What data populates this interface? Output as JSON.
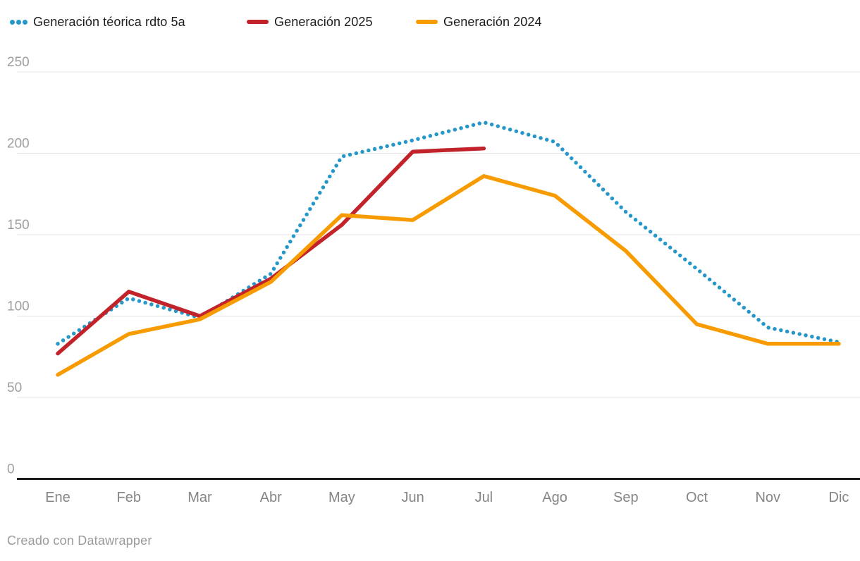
{
  "legend": {
    "items": [
      {
        "label": "Generación téorica rdto 5a",
        "color": "#2597c8",
        "style": "dotted"
      },
      {
        "label": "Generación 2025",
        "color": "#c2232a",
        "style": "solid"
      },
      {
        "label": "Generación 2024",
        "color": "#f79b00",
        "style": "solid"
      }
    ]
  },
  "chart_data": {
    "type": "line",
    "title": "",
    "categories": [
      "Ene",
      "Feb",
      "Mar",
      "Abr",
      "May",
      "Jun",
      "Jul",
      "Ago",
      "Sep",
      "Oct",
      "Nov",
      "Dic"
    ],
    "series": [
      {
        "name": "Generación téorica rdto 5a",
        "color": "#2597c8",
        "line_style": "dotted",
        "values": [
          83,
          111,
          99,
          126,
          198,
          208,
          219,
          207,
          164,
          129,
          93,
          84
        ]
      },
      {
        "name": "Generación 2025",
        "color": "#c2232a",
        "line_style": "solid",
        "values": [
          77,
          115,
          100,
          123,
          156,
          201,
          203,
          null,
          null,
          null,
          null,
          null
        ]
      },
      {
        "name": "Generación 2024",
        "color": "#f79b00",
        "line_style": "solid",
        "values": [
          64,
          89,
          98,
          121,
          162,
          159,
          186,
          174,
          140,
          95,
          83,
          83
        ]
      }
    ],
    "ylim": [
      0,
      250
    ],
    "yticks": [
      0,
      50,
      100,
      150,
      200,
      250
    ],
    "grid": true,
    "legend_position": "top-left"
  },
  "footer": {
    "credit": "Creado con Datawrapper"
  },
  "colors": {
    "grid": "#e4e4e4",
    "axis": "#1a1a1a",
    "y_label": "#9e9e9e",
    "x_label": "#858585",
    "legend_text": "#1c1c1c",
    "footer_text": "#9a9a9a",
    "background": "#ffffff"
  }
}
